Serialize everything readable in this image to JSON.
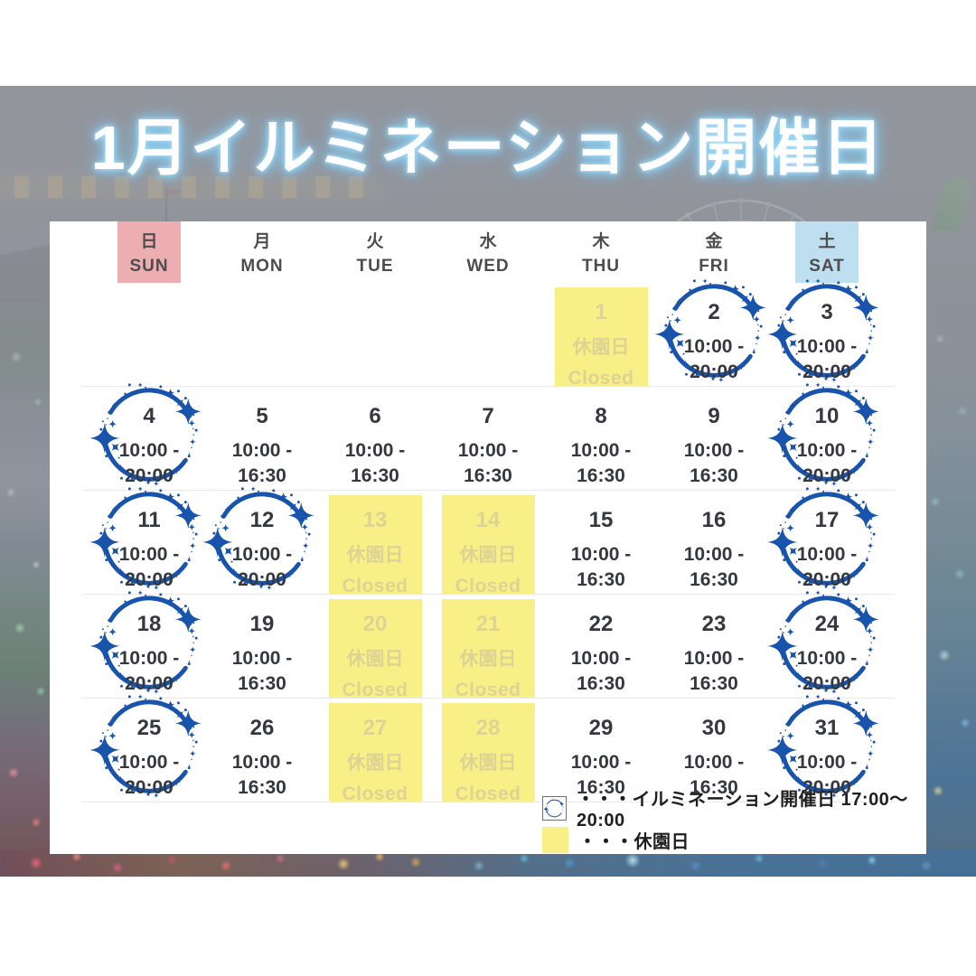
{
  "title": "1月イルミネーション開催日",
  "weekdays": [
    {
      "jp": "日",
      "en": "SUN"
    },
    {
      "jp": "月",
      "en": "MON"
    },
    {
      "jp": "火",
      "en": "TUE"
    },
    {
      "jp": "水",
      "en": "WED"
    },
    {
      "jp": "木",
      "en": "THU"
    },
    {
      "jp": "金",
      "en": "FRI"
    },
    {
      "jp": "土",
      "en": "SAT"
    }
  ],
  "labels": {
    "closed_jp": "休園日",
    "closed_en": "Closed"
  },
  "weeks": [
    [
      {
        "type": "empty"
      },
      {
        "type": "empty"
      },
      {
        "type": "empty"
      },
      {
        "type": "empty"
      },
      {
        "type": "closed",
        "day": "1"
      },
      {
        "type": "illumination",
        "day": "2",
        "hours1": "10:00 -",
        "hours2": "20:00"
      },
      {
        "type": "illumination",
        "day": "3",
        "hours1": "10:00 -",
        "hours2": "20:00"
      }
    ],
    [
      {
        "type": "illumination",
        "day": "4",
        "hours1": "10:00 -",
        "hours2": "20:00"
      },
      {
        "type": "open",
        "day": "5",
        "hours1": "10:00 -",
        "hours2": "16:30"
      },
      {
        "type": "open",
        "day": "6",
        "hours1": "10:00 -",
        "hours2": "16:30"
      },
      {
        "type": "open",
        "day": "7",
        "hours1": "10:00 -",
        "hours2": "16:30"
      },
      {
        "type": "open",
        "day": "8",
        "hours1": "10:00 -",
        "hours2": "16:30"
      },
      {
        "type": "open",
        "day": "9",
        "hours1": "10:00 -",
        "hours2": "16:30"
      },
      {
        "type": "illumination",
        "day": "10",
        "hours1": "10:00 -",
        "hours2": "20:00"
      }
    ],
    [
      {
        "type": "illumination",
        "day": "11",
        "hours1": "10:00 -",
        "hours2": "20:00"
      },
      {
        "type": "illumination",
        "day": "12",
        "hours1": "10:00 -",
        "hours2": "20:00"
      },
      {
        "type": "closed",
        "day": "13"
      },
      {
        "type": "closed",
        "day": "14"
      },
      {
        "type": "open",
        "day": "15",
        "hours1": "10:00 -",
        "hours2": "16:30"
      },
      {
        "type": "open",
        "day": "16",
        "hours1": "10:00 -",
        "hours2": "16:30"
      },
      {
        "type": "illumination",
        "day": "17",
        "hours1": "10:00 -",
        "hours2": "20:00"
      }
    ],
    [
      {
        "type": "illumination",
        "day": "18",
        "hours1": "10:00 -",
        "hours2": "20:00"
      },
      {
        "type": "open",
        "day": "19",
        "hours1": "10:00 -",
        "hours2": "16:30"
      },
      {
        "type": "closed",
        "day": "20"
      },
      {
        "type": "closed",
        "day": "21"
      },
      {
        "type": "open",
        "day": "22",
        "hours1": "10:00 -",
        "hours2": "16:30"
      },
      {
        "type": "open",
        "day": "23",
        "hours1": "10:00 -",
        "hours2": "16:30"
      },
      {
        "type": "illumination",
        "day": "24",
        "hours1": "10:00 -",
        "hours2": "20:00"
      }
    ],
    [
      {
        "type": "illumination",
        "day": "25",
        "hours1": "10:00 -",
        "hours2": "20:00"
      },
      {
        "type": "open",
        "day": "26",
        "hours1": "10:00 -",
        "hours2": "16:30"
      },
      {
        "type": "closed",
        "day": "27"
      },
      {
        "type": "closed",
        "day": "28"
      },
      {
        "type": "open",
        "day": "29",
        "hours1": "10:00 -",
        "hours2": "16:30"
      },
      {
        "type": "open",
        "day": "30",
        "hours1": "10:00 -",
        "hours2": "16:30"
      },
      {
        "type": "illumination",
        "day": "31",
        "hours1": "10:00 -",
        "hours2": "20:00"
      }
    ]
  ],
  "legend": [
    {
      "icon": "illumination-circle",
      "text": "・・・イルミネーション開催日 17:00〜20:00"
    },
    {
      "icon": "closed-square",
      "text": "・・・休園日"
    }
  ],
  "colors": {
    "sunday_header_bg": "#ecaeb0",
    "saturday_header_bg": "#bedff0",
    "closed_cell_bg": "#f9ef87",
    "closed_cell_text": "#ddd394",
    "illumination_circle_blue": "#1853ac",
    "date_text": "#35383f",
    "title_text": "#ffffff",
    "title_glow": "#8fd4f8"
  }
}
